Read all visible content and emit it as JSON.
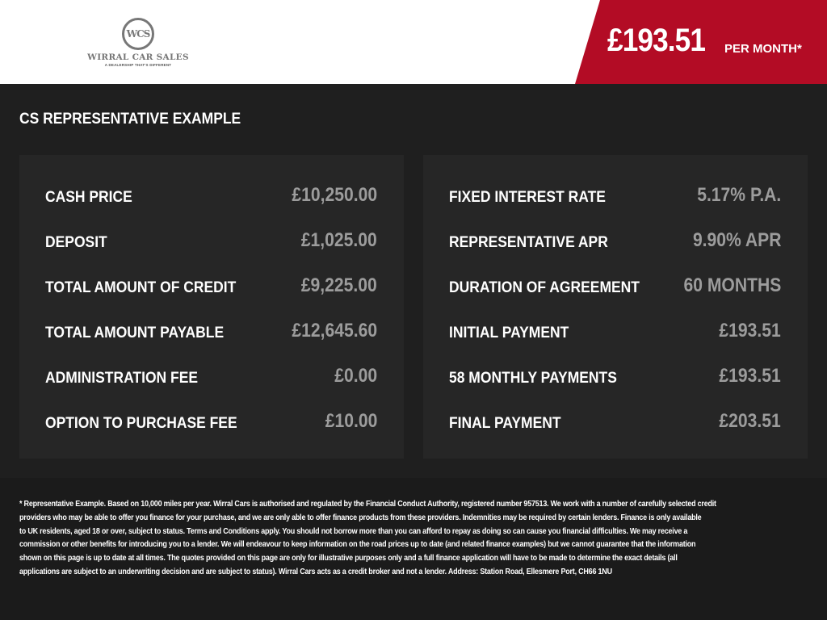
{
  "header": {
    "logo": {
      "monogram": "WCS",
      "name": "WIRRAL CAR SALES",
      "tagline": "A DEALERSHIP THAT'S DIFFERENT"
    },
    "price": "£193.51",
    "price_unit": "PER MONTH*",
    "accent_color": "#b30c25"
  },
  "title": "CS REPRESENTATIVE EXAMPLE",
  "left_panel": [
    {
      "label": "CASH PRICE",
      "value": "£10,250.00"
    },
    {
      "label": "DEPOSIT",
      "value": "£1,025.00"
    },
    {
      "label": "TOTAL AMOUNT OF CREDIT",
      "value": "£9,225.00"
    },
    {
      "label": "TOTAL AMOUNT PAYABLE",
      "value": "£12,645.60"
    },
    {
      "label": "ADMINISTRATION FEE",
      "value": "£0.00"
    },
    {
      "label": "OPTION TO PURCHASE FEE",
      "value": "£10.00"
    }
  ],
  "right_panel": [
    {
      "label": "FIXED INTEREST RATE",
      "value": "5.17% P.A."
    },
    {
      "label": "REPRESENTATIVE APR",
      "value": "9.90% APR"
    },
    {
      "label": "DURATION OF AGREEMENT",
      "value": "60 MONTHS"
    },
    {
      "label": "INITIAL PAYMENT",
      "value": "£193.51"
    },
    {
      "label": "58 MONTHLY PAYMENTS",
      "value": "£193.51"
    },
    {
      "label": "FINAL PAYMENT",
      "value": "£203.51"
    }
  ],
  "disclaimer": [
    "* Representative Example. Based on 10,000 miles per year. Wirral Cars is authorised and regulated by the Financial Conduct Authority, registered number 957513. We work with a number of carefully selected credit",
    "providers who may be able to offer you finance for your purchase, and we are only able to offer finance products from these providers. Indemnities may be required by certain lenders. Finance is only available",
    "to UK residents, aged 18 or over, subject to status. Terms and Conditions apply. You should not borrow more than you can afford to repay as doing so can cause you financial difficulties. We may receive a",
    "commission or other benefits for introducing you to a lender. We will endeavour to keep information on the road prices up to date (and related finance examples) but we cannot guarantee that the information",
    "shown on this page is up to date at all times. The quotes provided on this page are only for illustrative purposes only and a full finance application will have to be made to determine the exact details (all",
    "applications are subject to an underwriting decision and are subject to status). Wirral Cars acts as a credit broker and not a lender. Address: Station Road, Ellesmere Port, CH66 1NU"
  ]
}
